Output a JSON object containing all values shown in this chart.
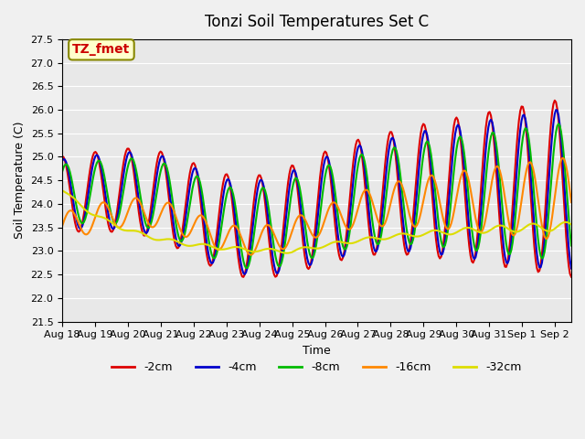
{
  "title": "Tonzi Soil Temperatures Set C",
  "xlabel": "Time",
  "ylabel": "Soil Temperature (C)",
  "ylim": [
    21.5,
    27.5
  ],
  "xlim": [
    0,
    15.5
  ],
  "yticks": [
    21.5,
    22.0,
    22.5,
    23.0,
    23.5,
    24.0,
    24.5,
    25.0,
    25.5,
    26.0,
    26.5,
    27.0,
    27.5
  ],
  "xtick_labels": [
    "Aug 18",
    "Aug 19",
    "Aug 20",
    "Aug 21",
    "Aug 22",
    "Aug 23",
    "Aug 24",
    "Aug 25",
    "Aug 26",
    "Aug 27",
    "Aug 28",
    "Aug 29",
    "Aug 30",
    "Aug 31",
    "Sep 1",
    "Sep 2"
  ],
  "legend_labels": [
    "-2cm",
    "-4cm",
    "-8cm",
    "-16cm",
    "-32cm"
  ],
  "legend_colors": [
    "#dd0000",
    "#0000cc",
    "#00bb00",
    "#ff8800",
    "#dddd00"
  ],
  "annotation_text": "TZ_fmet",
  "annotation_color": "#cc0000",
  "annotation_bg": "#ffffcc",
  "annotation_border": "#888800",
  "background_color": "#e8e8e8",
  "linewidth": 1.5,
  "period": 1.0,
  "n_points": 400
}
